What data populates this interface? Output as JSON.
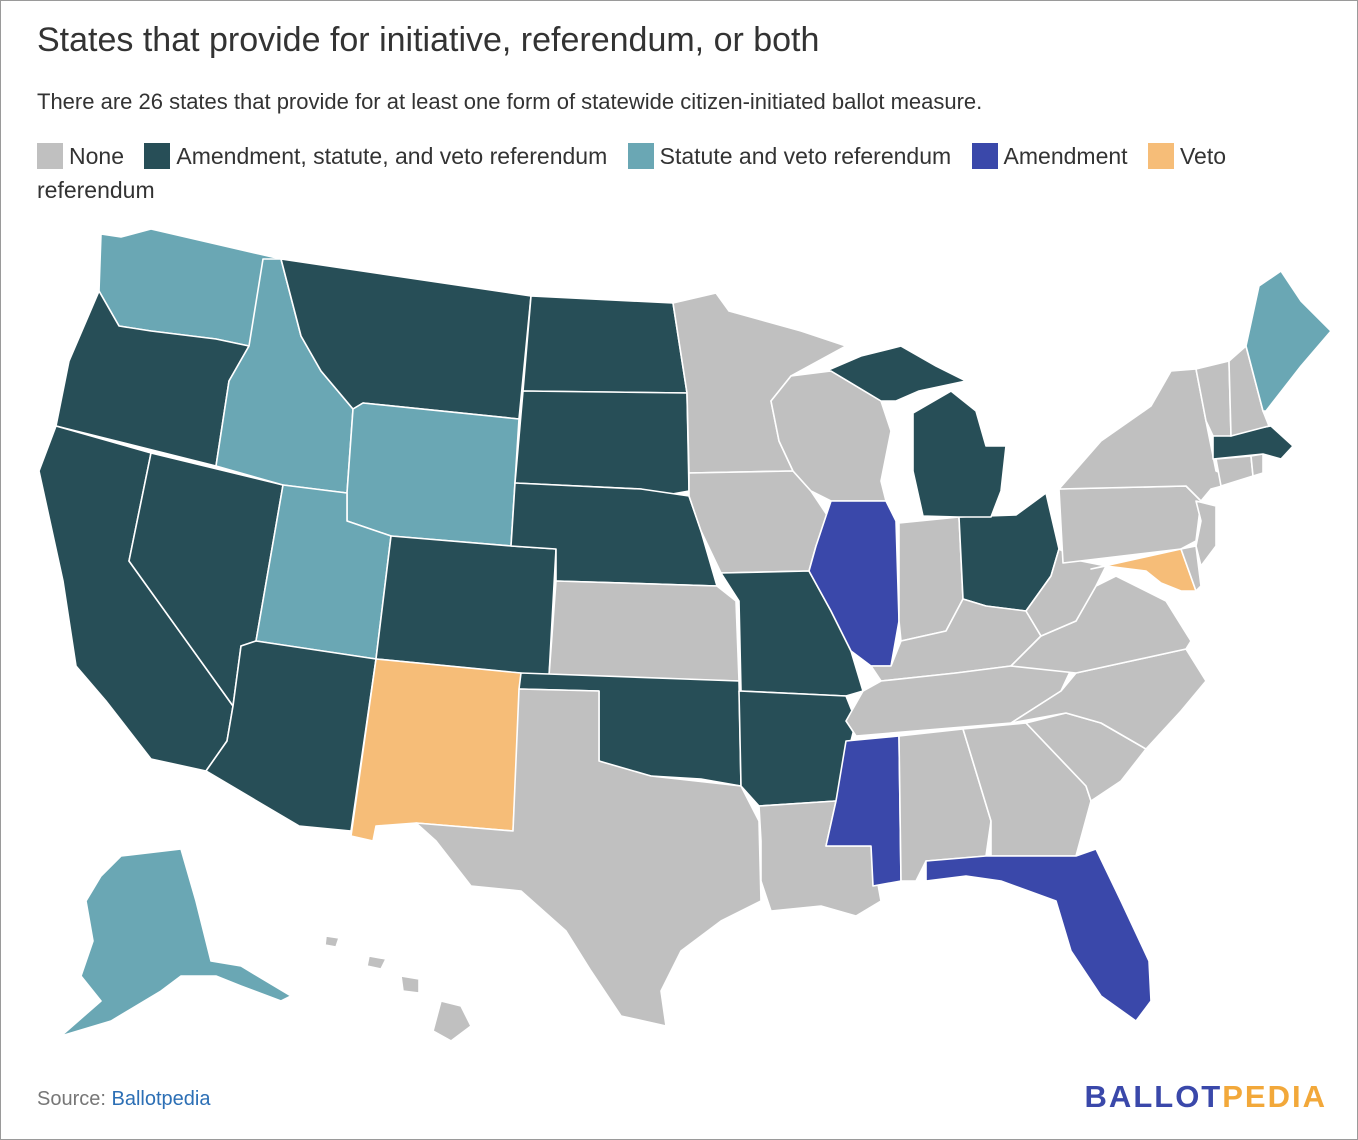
{
  "title": "States that provide for initiative, referendum, or both",
  "subtitle": "There are 26 states that provide for at least one form of statewide citizen-initiated ballot measure.",
  "legend": [
    {
      "label": "None",
      "color": "#c0c0c0"
    },
    {
      "label": "Amendment, statute, and veto referendum",
      "color": "#274e57"
    },
    {
      "label": "Statute and veto referendum",
      "color": "#6aa7b4"
    },
    {
      "label": "Amendment",
      "color": "#3a48aa"
    },
    {
      "label": "Veto referendum",
      "color": "#f6bd78"
    }
  ],
  "colors": {
    "none": "#c0c0c0",
    "full": "#274e57",
    "statute": "#6aa7b4",
    "amendment": "#3a48aa",
    "veto": "#f6bd78",
    "brand_blue": "#3a48aa",
    "brand_gold": "#f2a83a",
    "link": "#2c6fb5"
  },
  "categories": {
    "Washington": "statute",
    "Oregon": "full",
    "California": "full",
    "Nevada": "full",
    "Idaho": "statute",
    "Montana": "full",
    "Wyoming": "statute",
    "Utah": "statute",
    "Colorado": "full",
    "Arizona": "full",
    "New Mexico": "veto",
    "North Dakota": "full",
    "South Dakota": "full",
    "Nebraska": "full",
    "Kansas": "none",
    "Oklahoma": "full",
    "Texas": "none",
    "Minnesota": "none",
    "Iowa": "none",
    "Missouri": "full",
    "Arkansas": "full",
    "Louisiana": "none",
    "Wisconsin": "none",
    "Illinois": "amendment",
    "Michigan": "full",
    "Indiana": "none",
    "Ohio": "full",
    "Kentucky": "none",
    "Tennessee": "none",
    "Mississippi": "amendment",
    "Alabama": "none",
    "Georgia": "none",
    "Florida": "amendment",
    "South Carolina": "none",
    "North Carolina": "none",
    "Virginia": "none",
    "West Virginia": "none",
    "Pennsylvania": "none",
    "New York": "none",
    "Maryland": "veto",
    "Delaware": "none",
    "New Jersey": "none",
    "Connecticut": "none",
    "Rhode Island": "none",
    "Massachusetts": "full",
    "Vermont": "none",
    "New Hampshire": "none",
    "Maine": "statute",
    "Alaska": "statute",
    "Hawaii": "none"
  },
  "source": {
    "prefix": "Source: ",
    "link_text": "Ballotpedia"
  },
  "brand": {
    "part1": "BALLOT",
    "part2": "PEDIA"
  }
}
